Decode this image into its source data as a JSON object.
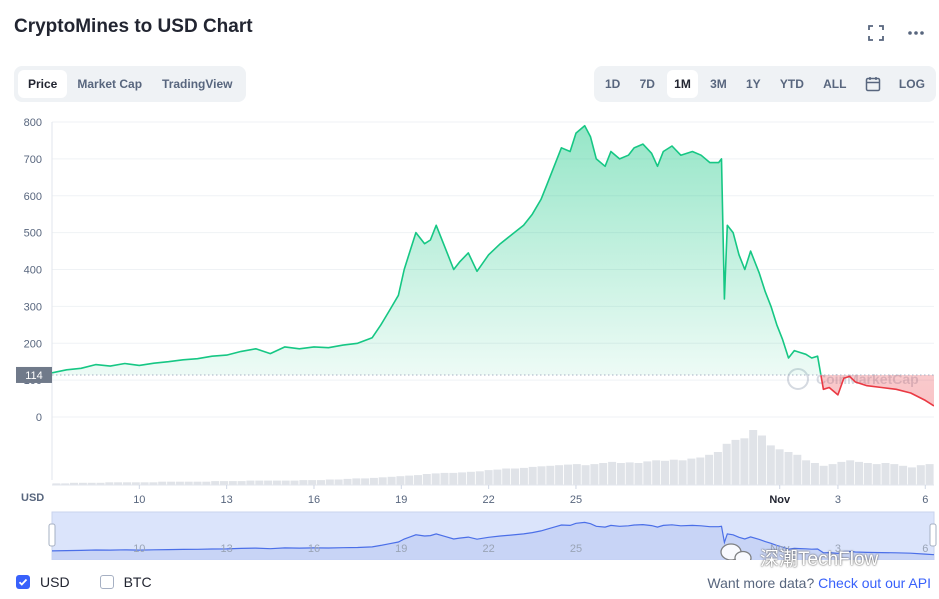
{
  "title": "CryptoMines to USD Chart",
  "icons": {
    "fullscreen": "fullscreen-icon",
    "more": "more-icon",
    "calendar": "calendar-icon",
    "wechat": "wechat-icon"
  },
  "view_tabs": [
    {
      "label": "Price",
      "active": true
    },
    {
      "label": "Market Cap",
      "active": false
    },
    {
      "label": "TradingView",
      "active": false
    }
  ],
  "range_tabs": [
    {
      "label": "1D",
      "active": false
    },
    {
      "label": "7D",
      "active": false
    },
    {
      "label": "1M",
      "active": true
    },
    {
      "label": "3M",
      "active": false
    },
    {
      "label": "1Y",
      "active": false
    },
    {
      "label": "YTD",
      "active": false
    },
    {
      "label": "ALL",
      "active": false
    }
  ],
  "log_label": "LOG",
  "legend": [
    {
      "label": "USD",
      "checked": true
    },
    {
      "label": "BTC",
      "checked": false
    }
  ],
  "api_prefix": "Want more data?",
  "api_link": "Check out our API",
  "watermark_text": "CoinMarketCap",
  "overlay_watermark": "深潮TechFlow",
  "colors": {
    "up": "#16c784",
    "down": "#ea3943",
    "accent": "#3861fb",
    "navigator_line": "#4b6fe8",
    "grid": "#eff2f5",
    "axis_text": "#58667e"
  },
  "chart_data": {
    "type": "line",
    "title": "CryptoMines to USD Chart",
    "xlabel": "",
    "ylabel": "",
    "currency_label": "USD",
    "x_unit": "days since Oct 7",
    "xlim": [
      0,
      30.3
    ],
    "ylim": [
      0,
      800
    ],
    "y_ticks": [
      0,
      100,
      200,
      300,
      400,
      500,
      600,
      700,
      800
    ],
    "x_ticks": [
      {
        "x": 3,
        "label": "10"
      },
      {
        "x": 6,
        "label": "13"
      },
      {
        "x": 9,
        "label": "16"
      },
      {
        "x": 12,
        "label": "19"
      },
      {
        "x": 15,
        "label": "22"
      },
      {
        "x": 18,
        "label": "25"
      },
      {
        "x": 25,
        "label": "Nov"
      },
      {
        "x": 27,
        "label": "3"
      },
      {
        "x": 30,
        "label": "6"
      }
    ],
    "reference_price": 114,
    "reference_label": "114",
    "grid": true,
    "series": [
      {
        "name": "Price",
        "points": [
          [
            0.0,
            120
          ],
          [
            0.5,
            128
          ],
          [
            1.0,
            132
          ],
          [
            1.5,
            142
          ],
          [
            2.0,
            138
          ],
          [
            2.5,
            145
          ],
          [
            3.0,
            140
          ],
          [
            3.5,
            146
          ],
          [
            4.0,
            150
          ],
          [
            4.5,
            155
          ],
          [
            5.0,
            158
          ],
          [
            5.5,
            165
          ],
          [
            6.0,
            168
          ],
          [
            6.5,
            178
          ],
          [
            7.0,
            185
          ],
          [
            7.5,
            172
          ],
          [
            8.0,
            190
          ],
          [
            8.5,
            185
          ],
          [
            9.0,
            190
          ],
          [
            9.5,
            188
          ],
          [
            10.0,
            195
          ],
          [
            10.5,
            200
          ],
          [
            11.0,
            215
          ],
          [
            11.3,
            250
          ],
          [
            11.6,
            290
          ],
          [
            11.9,
            330
          ],
          [
            12.1,
            400
          ],
          [
            12.3,
            450
          ],
          [
            12.5,
            500
          ],
          [
            12.8,
            470
          ],
          [
            13.0,
            480
          ],
          [
            13.2,
            520
          ],
          [
            13.5,
            460
          ],
          [
            13.8,
            400
          ],
          [
            14.0,
            420
          ],
          [
            14.3,
            445
          ],
          [
            14.6,
            395
          ],
          [
            15.0,
            440
          ],
          [
            15.4,
            470
          ],
          [
            15.8,
            495
          ],
          [
            16.2,
            520
          ],
          [
            16.5,
            550
          ],
          [
            16.8,
            590
          ],
          [
            17.0,
            630
          ],
          [
            17.3,
            690
          ],
          [
            17.5,
            730
          ],
          [
            17.8,
            720
          ],
          [
            18.0,
            770
          ],
          [
            18.3,
            790
          ],
          [
            18.5,
            760
          ],
          [
            18.7,
            700
          ],
          [
            19.0,
            680
          ],
          [
            19.2,
            720
          ],
          [
            19.5,
            700
          ],
          [
            19.8,
            710
          ],
          [
            20.0,
            730
          ],
          [
            20.3,
            740
          ],
          [
            20.6,
            715
          ],
          [
            20.8,
            680
          ],
          [
            21.0,
            720
          ],
          [
            21.3,
            735
          ],
          [
            21.6,
            710
          ],
          [
            22.0,
            720
          ],
          [
            22.3,
            710
          ],
          [
            22.6,
            690
          ],
          [
            22.9,
            690
          ],
          [
            23.0,
            700
          ],
          [
            23.1,
            320
          ],
          [
            23.2,
            520
          ],
          [
            23.4,
            500
          ],
          [
            23.6,
            440
          ],
          [
            23.8,
            400
          ],
          [
            24.0,
            450
          ],
          [
            24.3,
            390
          ],
          [
            24.5,
            340
          ],
          [
            24.7,
            300
          ],
          [
            24.9,
            250
          ],
          [
            25.1,
            210
          ],
          [
            25.3,
            160
          ],
          [
            25.5,
            180
          ],
          [
            25.7,
            175
          ],
          [
            25.9,
            170
          ],
          [
            26.1,
            160
          ],
          [
            26.3,
            165
          ],
          [
            26.5,
            75
          ],
          [
            26.7,
            80
          ],
          [
            27.0,
            60
          ],
          [
            27.2,
            105
          ],
          [
            27.4,
            110
          ],
          [
            27.6,
            95
          ],
          [
            28.0,
            85
          ],
          [
            28.5,
            80
          ],
          [
            29.0,
            75
          ],
          [
            29.5,
            65
          ],
          [
            30.0,
            45
          ],
          [
            30.3,
            30
          ]
        ]
      }
    ],
    "volume": [
      3,
      3,
      4,
      4,
      4,
      4,
      5,
      5,
      5,
      5,
      5,
      5,
      6,
      6,
      6,
      6,
      6,
      6,
      7,
      7,
      7,
      7,
      8,
      8,
      8,
      8,
      8,
      8,
      9,
      9,
      9,
      10,
      10,
      11,
      12,
      12,
      13,
      14,
      15,
      16,
      17,
      18,
      20,
      21,
      22,
      22,
      23,
      24,
      25,
      27,
      28,
      30,
      30,
      31,
      33,
      34,
      35,
      36,
      37,
      38,
      36,
      38,
      40,
      42,
      40,
      41,
      40,
      43,
      45,
      44,
      46,
      45,
      48,
      50,
      55,
      60,
      75,
      82,
      85,
      100,
      90,
      72,
      65,
      60,
      55,
      45,
      40,
      35,
      38,
      42,
      45,
      42,
      40,
      38,
      40,
      38,
      35,
      32,
      36,
      38
    ]
  }
}
